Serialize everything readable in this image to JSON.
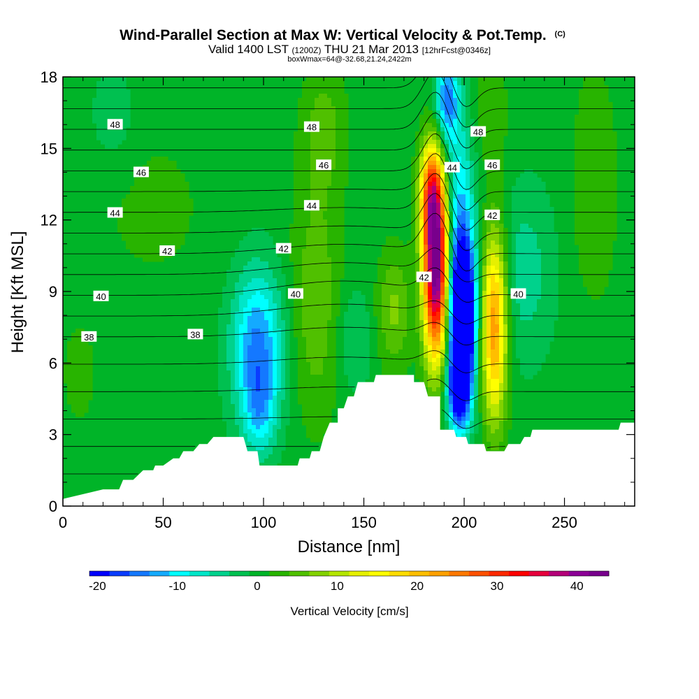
{
  "chart_data": {
    "type": "heatmap",
    "title": "Wind-Parallel Section at Max W: Vertical Velocity & Pot.Temp.",
    "title_suffix": "(C)",
    "subtitle_prefix": "Valid 1400 LST",
    "subtitle_zulu": "(1200Z)",
    "subtitle_date": "THU 21 Mar 2013",
    "subtitle_forecast": "[12hrFcst@0346z]",
    "subtitle2": "boxWmax=64@-32.68,21.24,2422m",
    "xlabel": "Distance [nm]",
    "ylabel": "Height [Kft MSL]",
    "xlim": [
      0,
      285
    ],
    "ylim": [
      0,
      18
    ],
    "x_ticks": [
      0,
      50,
      100,
      150,
      200,
      250
    ],
    "y_ticks": [
      0,
      3,
      6,
      9,
      12,
      15,
      18
    ],
    "x_tick_labels": [
      "0",
      "50",
      "100",
      "150",
      "200",
      "250"
    ],
    "y_tick_labels": [
      "0",
      "3",
      "6",
      "9",
      "12",
      "15",
      "18"
    ],
    "colorbar": {
      "label": "Vertical Velocity [cm/s]",
      "min": -21,
      "max": 43,
      "step": 2.5,
      "tick_values": [
        -20,
        -10,
        0,
        10,
        20,
        30,
        40
      ],
      "tick_labels": [
        "-20",
        "-10",
        "0",
        "10",
        "20",
        "30",
        "40"
      ],
      "colors": [
        "#0000ff",
        "#0a3cff",
        "#1478ff",
        "#14aaff",
        "#00ffff",
        "#00e6c8",
        "#00d28c",
        "#00c050",
        "#00b428",
        "#28b400",
        "#50c000",
        "#82d200",
        "#b4e600",
        "#e6f000",
        "#ffff00",
        "#ffdc00",
        "#ffbe00",
        "#ffa000",
        "#ff7800",
        "#ff5000",
        "#ff2800",
        "#ff0000",
        "#e6003c",
        "#b40078",
        "#8c0096",
        "#78008c"
      ]
    },
    "terrain_top_kft": [
      [
        0,
        0.3
      ],
      [
        20,
        0.7
      ],
      [
        28,
        0.7
      ],
      [
        30,
        1.1
      ],
      [
        35,
        1.1
      ],
      [
        40,
        1.5
      ],
      [
        45,
        1.5
      ],
      [
        46,
        1.7
      ],
      [
        50,
        1.7
      ],
      [
        55,
        2.0
      ],
      [
        58,
        2.0
      ],
      [
        60,
        2.3
      ],
      [
        65,
        2.3
      ],
      [
        68,
        2.6
      ],
      [
        72,
        2.6
      ],
      [
        75,
        2.9
      ],
      [
        90,
        2.9
      ],
      [
        92,
        2.3
      ],
      [
        97,
        2.3
      ],
      [
        98,
        1.7
      ],
      [
        117,
        1.7
      ],
      [
        118,
        2.0
      ],
      [
        123,
        2.0
      ],
      [
        124,
        2.3
      ],
      [
        128,
        2.3
      ],
      [
        130,
        2.9
      ],
      [
        133,
        3.5
      ],
      [
        137,
        3.5
      ],
      [
        137,
        4.1
      ],
      [
        140,
        4.1
      ],
      [
        142,
        4.6
      ],
      [
        145,
        4.6
      ],
      [
        147,
        5.2
      ],
      [
        155,
        5.2
      ],
      [
        156,
        5.5
      ],
      [
        175,
        5.5
      ],
      [
        175,
        5.2
      ],
      [
        180,
        5.2
      ],
      [
        182,
        4.6
      ],
      [
        188,
        4.6
      ],
      [
        188,
        3.2
      ],
      [
        195,
        3.2
      ],
      [
        196,
        2.9
      ],
      [
        201,
        2.9
      ],
      [
        202,
        2.6
      ],
      [
        210,
        2.6
      ],
      [
        211,
        2.3
      ],
      [
        220,
        2.3
      ],
      [
        222,
        2.6
      ],
      [
        228,
        2.6
      ],
      [
        230,
        2.9
      ],
      [
        233,
        2.9
      ],
      [
        234,
        3.2
      ],
      [
        277,
        3.2
      ],
      [
        278,
        3.5
      ],
      [
        285,
        3.5
      ]
    ],
    "w_features": [
      {
        "x": 97,
        "z": 6.8,
        "sx": 9,
        "sz": 2.2,
        "w": -14
      },
      {
        "x": 98,
        "z": 4.0,
        "sx": 6,
        "sz": 1.4,
        "w": -8
      },
      {
        "x": 186,
        "z": 10.2,
        "sx": 4.5,
        "sz": 2.8,
        "w": 46
      },
      {
        "x": 183,
        "z": 13.2,
        "sx": 4,
        "sz": 1.4,
        "w": 16
      },
      {
        "x": 199,
        "z": 7.8,
        "sx": 4.5,
        "sz": 2.3,
        "w": -36
      },
      {
        "x": 197,
        "z": 4.8,
        "sx": 4,
        "sz": 1.2,
        "w": -16
      },
      {
        "x": 197,
        "z": 13.0,
        "sx": 6,
        "sz": 3.5,
        "w": -10
      },
      {
        "x": 191,
        "z": 17.0,
        "sx": 4,
        "sz": 1.2,
        "w": -14
      },
      {
        "x": 215,
        "z": 7.6,
        "sx": 4.5,
        "sz": 2.8,
        "w": 24
      },
      {
        "x": 230,
        "z": 9.8,
        "sx": 10,
        "sz": 2.5,
        "w": -5
      },
      {
        "x": 165,
        "z": 8.2,
        "sx": 6,
        "sz": 1.8,
        "w": 7
      },
      {
        "x": 145,
        "z": 7.0,
        "sx": 6,
        "sz": 1.5,
        "w": -4
      },
      {
        "x": 126,
        "z": 8.5,
        "sx": 9,
        "sz": 3.5,
        "w": 6
      },
      {
        "x": 265,
        "z": 13.5,
        "sx": 8,
        "sz": 3.5,
        "w": 4
      },
      {
        "x": 45,
        "z": 12.5,
        "sx": 25,
        "sz": 3,
        "w": 2
      },
      {
        "x": 25,
        "z": 16.3,
        "sx": 8,
        "sz": 1.5,
        "w": -3
      },
      {
        "x": 210,
        "z": 16.5,
        "sx": 10,
        "sz": 2.0,
        "w": 3
      },
      {
        "x": 130,
        "z": 15.8,
        "sx": 8,
        "sz": 2.0,
        "w": 5
      },
      {
        "x": 8,
        "z": 5.5,
        "sx": 6,
        "sz": 1.5,
        "w": 3
      }
    ],
    "theta_levels": [
      32,
      33,
      34,
      35,
      36,
      37,
      38,
      39,
      40,
      41,
      42,
      43,
      44,
      45,
      46,
      47,
      48,
      49,
      50
    ],
    "theta_label_positions": [
      {
        "value": 48,
        "x": 26,
        "z": 16.0,
        "text": "48"
      },
      {
        "value": 48,
        "x": 124,
        "z": 15.9,
        "text": "48"
      },
      {
        "value": 48,
        "x": 207,
        "z": 15.7,
        "text": "48"
      },
      {
        "value": 46,
        "x": 39,
        "z": 14.0,
        "text": "46"
      },
      {
        "value": 46,
        "x": 130,
        "z": 14.3,
        "text": "46"
      },
      {
        "value": 46,
        "x": 214,
        "z": 14.3,
        "text": "46"
      },
      {
        "value": 44,
        "x": 26,
        "z": 12.3,
        "text": "44"
      },
      {
        "value": 44,
        "x": 124,
        "z": 12.6,
        "text": "44"
      },
      {
        "value": 44,
        "x": 194,
        "z": 14.2,
        "text": "44"
      },
      {
        "value": 42,
        "x": 52,
        "z": 10.7,
        "text": "42"
      },
      {
        "value": 42,
        "x": 110,
        "z": 10.8,
        "text": "42"
      },
      {
        "value": 42,
        "x": 214,
        "z": 12.2,
        "text": "42"
      },
      {
        "value": 42,
        "x": 180,
        "z": 9.6,
        "text": "42"
      },
      {
        "value": 40,
        "x": 19,
        "z": 8.8,
        "text": "40"
      },
      {
        "value": 40,
        "x": 116,
        "z": 8.9,
        "text": "40"
      },
      {
        "value": 40,
        "x": 227,
        "z": 8.9,
        "text": "40"
      },
      {
        "value": 38,
        "x": 13,
        "z": 7.1,
        "text": "38"
      },
      {
        "value": 38,
        "x": 66,
        "z": 7.2,
        "text": "38"
      }
    ]
  }
}
